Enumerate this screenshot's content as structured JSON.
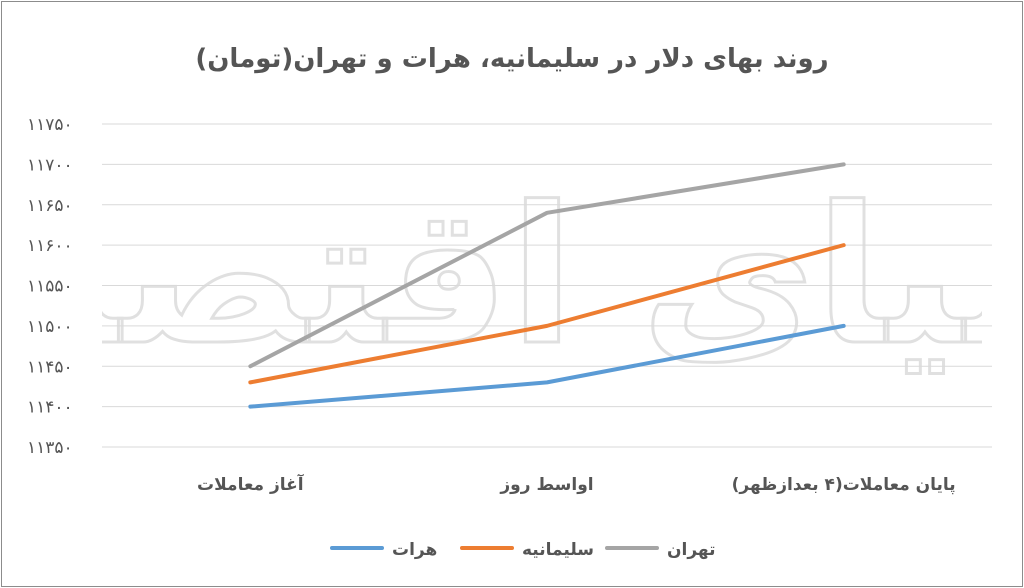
{
  "chart_data": {
    "type": "line",
    "title": "روند بهای دلار در سلیمانیه، هرات و تهران(تومان)",
    "xlabel": "",
    "ylabel": "",
    "categories": [
      "آغاز معاملات",
      "اواسط روز",
      "پایان معاملات(۴ بعدازظهر)"
    ],
    "ylim": [
      11350,
      11750
    ],
    "yticks": [
      11350,
      11400,
      11450,
      11500,
      11550,
      11600,
      11650,
      11700,
      11750
    ],
    "ytick_labels": [
      "۱۱۳۵۰",
      "۱۱۴۰۰",
      "۱۱۴۵۰",
      "۱۱۵۰۰",
      "۱۱۵۵۰",
      "۱۱۶۰۰",
      "۱۱۶۵۰",
      "۱۱۷۰۰",
      "۱۱۷۵۰"
    ],
    "grid": true,
    "legend_position": "bottom",
    "series": [
      {
        "name": "هرات",
        "values": [
          11400,
          11430,
          11500
        ],
        "color": "#5b9bd5"
      },
      {
        "name": "سلیمانیه",
        "values": [
          11430,
          11500,
          11600
        ],
        "color": "#ed7d31"
      },
      {
        "name": "تهران",
        "values": [
          11450,
          11640,
          11700
        ],
        "color": "#a5a5a5"
      }
    ]
  },
  "watermark": {
    "text": "دنیای اقتصاد"
  }
}
